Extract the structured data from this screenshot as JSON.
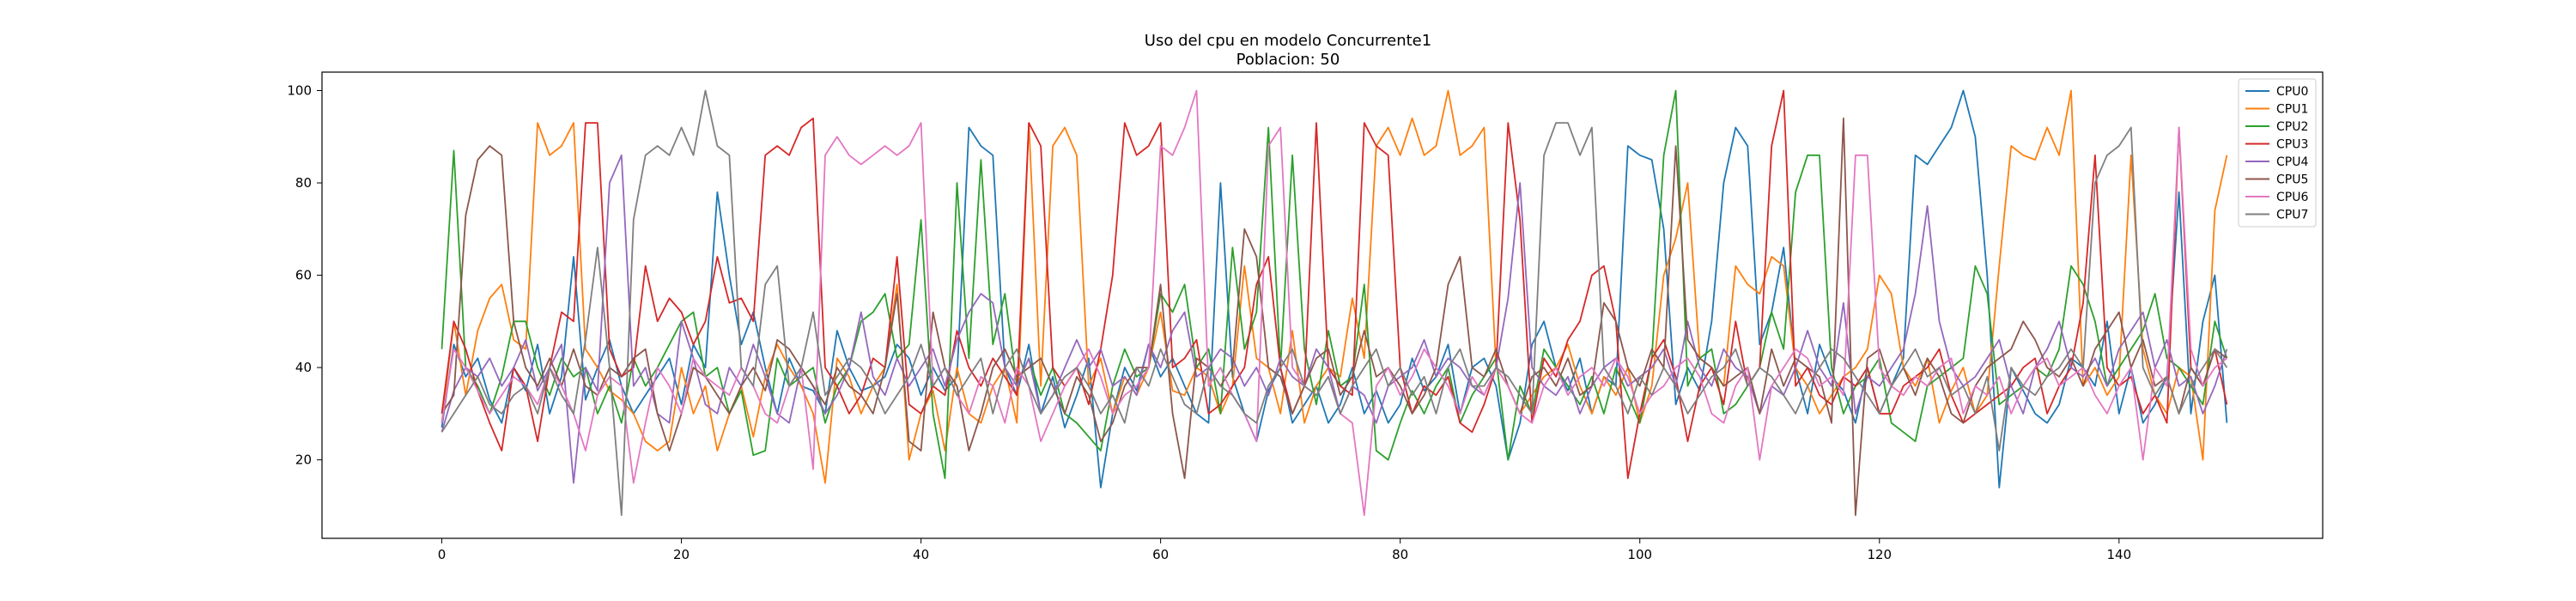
{
  "chart_data": {
    "type": "line",
    "title": "Uso del cpu en modelo Concurrente1",
    "subtitle": "Poblacion: 50",
    "xlabel": "",
    "ylabel": "",
    "xlim": [
      -10,
      157
    ],
    "ylim": [
      3,
      104
    ],
    "x_ticks": [
      0,
      20,
      40,
      60,
      80,
      100,
      120,
      140
    ],
    "y_ticks": [
      20,
      40,
      60,
      80,
      100
    ],
    "grid": false,
    "legend_position": "top-right",
    "colors": [
      "#1f77b4",
      "#ff7f0e",
      "#2ca02c",
      "#d62728",
      "#9467bd",
      "#8c564b",
      "#e377c2",
      "#7f7f7f"
    ],
    "series": [
      {
        "name": "CPU0",
        "values": [
          27,
          45,
          38,
          42,
          33,
          28,
          40,
          35,
          45,
          30,
          38,
          64,
          33,
          40,
          46,
          36,
          30,
          34,
          38,
          42,
          32,
          45,
          40,
          78,
          60,
          45,
          52,
          40,
          30,
          42,
          36,
          35,
          30,
          48,
          40,
          35,
          36,
          38,
          45,
          42,
          34,
          40,
          35,
          38,
          92,
          88,
          86,
          40,
          34,
          45,
          30,
          38,
          27,
          34,
          42,
          14,
          30,
          40,
          35,
          45,
          38,
          42,
          36,
          30,
          28,
          80,
          38,
          30,
          24,
          35,
          40,
          28,
          32,
          36,
          28,
          32,
          40,
          30,
          35,
          28,
          32,
          42,
          35,
          38,
          45,
          30,
          40,
          42,
          36,
          20,
          28,
          45,
          50,
          40,
          35,
          42,
          30,
          38,
          36,
          88,
          86,
          85,
          70,
          32,
          40,
          35,
          50,
          80,
          92,
          88,
          45,
          52,
          66,
          40,
          30,
          45,
          38,
          35,
          28,
          40,
          30,
          36,
          42,
          86,
          84,
          88,
          92,
          100,
          90,
          60,
          14,
          40,
          35,
          30,
          28,
          32,
          42,
          40,
          36,
          50,
          30,
          40,
          28,
          32,
          38,
          78,
          30,
          50,
          60,
          28
        ]
      },
      {
        "name": "CPU1",
        "values": [
          28,
          50,
          34,
          48,
          55,
          58,
          46,
          44,
          93,
          86,
          88,
          93,
          44,
          40,
          35,
          33,
          30,
          24,
          22,
          24,
          40,
          30,
          36,
          22,
          30,
          36,
          25,
          38,
          45,
          40,
          36,
          30,
          15,
          42,
          38,
          30,
          36,
          40,
          58,
          20,
          30,
          35,
          22,
          40,
          30,
          28,
          36,
          40,
          28,
          93,
          36,
          88,
          92,
          86,
          36,
          42,
          30,
          38,
          34,
          40,
          52,
          35,
          34,
          40,
          38,
          30,
          36,
          62,
          42,
          40,
          30,
          48,
          28,
          36,
          40,
          38,
          55,
          42,
          88,
          92,
          86,
          94,
          86,
          88,
          100,
          86,
          88,
          92,
          40,
          36,
          30,
          34,
          38,
          40,
          45,
          36,
          30,
          38,
          34,
          40,
          28,
          36,
          60,
          68,
          80,
          42,
          40,
          36,
          62,
          58,
          56,
          64,
          62,
          40,
          36,
          30,
          34,
          38,
          40,
          44,
          60,
          56,
          40,
          36,
          42,
          28,
          35,
          40,
          30,
          34,
          62,
          88,
          86,
          85,
          92,
          86,
          100,
          36,
          40,
          34,
          38,
          86,
          44,
          34,
          30,
          40,
          38,
          20,
          74,
          86
        ]
      },
      {
        "name": "CPU2",
        "values": [
          44,
          87,
          40,
          36,
          30,
          38,
          50,
          50,
          40,
          34,
          42,
          38,
          40,
          30,
          36,
          28,
          42,
          36,
          40,
          45,
          50,
          52,
          38,
          40,
          30,
          35,
          21,
          22,
          42,
          36,
          38,
          40,
          28,
          36,
          40,
          50,
          52,
          56,
          42,
          45,
          72,
          30,
          16,
          80,
          42,
          85,
          45,
          56,
          36,
          42,
          34,
          40,
          30,
          28,
          25,
          22,
          36,
          44,
          38,
          40,
          56,
          52,
          58,
          40,
          44,
          30,
          66,
          44,
          52,
          92,
          40,
          86,
          44,
          32,
          48,
          36,
          38,
          58,
          22,
          20,
          28,
          35,
          30,
          36,
          40,
          28,
          34,
          38,
          42,
          20,
          36,
          30,
          44,
          40,
          36,
          32,
          38,
          30,
          40,
          34,
          28,
          42,
          86,
          100,
          36,
          42,
          44,
          30,
          32,
          36,
          40,
          52,
          44,
          78,
          86,
          86,
          40,
          30,
          36,
          38,
          42,
          28,
          26,
          24,
          36,
          38,
          40,
          42,
          62,
          56,
          32,
          34,
          36,
          40,
          38,
          44,
          62,
          58,
          50,
          36,
          40,
          44,
          48,
          56,
          42,
          40,
          36,
          32,
          50,
          42
        ]
      },
      {
        "name": "CPU3",
        "values": [
          30,
          50,
          44,
          35,
          28,
          22,
          40,
          36,
          24,
          40,
          52,
          50,
          93,
          93,
          44,
          38,
          40,
          62,
          50,
          55,
          52,
          45,
          50,
          64,
          54,
          55,
          50,
          86,
          88,
          86,
          92,
          94,
          40,
          36,
          30,
          34,
          42,
          40,
          64,
          32,
          30,
          36,
          34,
          48,
          40,
          36,
          42,
          38,
          34,
          93,
          88,
          40,
          36,
          40,
          32,
          44,
          60,
          93,
          86,
          88,
          93,
          40,
          42,
          46,
          30,
          32,
          36,
          40,
          58,
          64,
          40,
          30,
          36,
          93,
          40,
          36,
          34,
          93,
          88,
          86,
          40,
          30,
          36,
          34,
          38,
          28,
          26,
          32,
          40,
          93,
          72,
          28,
          42,
          38,
          46,
          50,
          60,
          62,
          50,
          16,
          30,
          42,
          46,
          38,
          24,
          36,
          40,
          32,
          50,
          36,
          40,
          88,
          100,
          36,
          40,
          34,
          32,
          38,
          36,
          40,
          30,
          30,
          36,
          38,
          40,
          44,
          34,
          28,
          30,
          32,
          34,
          36,
          40,
          42,
          30,
          36,
          40,
          54,
          86,
          40,
          36,
          38,
          30,
          34,
          28,
          92,
          40,
          36,
          44,
          32
        ]
      },
      {
        "name": "CPU4",
        "values": [
          26,
          35,
          40,
          38,
          42,
          36,
          40,
          46,
          35,
          40,
          45,
          15,
          40,
          35,
          80,
          86,
          36,
          40,
          30,
          28,
          50,
          42,
          32,
          30,
          40,
          36,
          45,
          38,
          30,
          28,
          40,
          36,
          30,
          34,
          40,
          52,
          38,
          34,
          42,
          36,
          40,
          44,
          36,
          46,
          52,
          56,
          54,
          40,
          36,
          42,
          30,
          34,
          40,
          46,
          40,
          44,
          36,
          38,
          34,
          45,
          40,
          48,
          52,
          38,
          40,
          44,
          42,
          36,
          40,
          34,
          42,
          38,
          36,
          44,
          40,
          30,
          36,
          34,
          28,
          36,
          38,
          40,
          46,
          38,
          42,
          40,
          36,
          34,
          40,
          55,
          80,
          40,
          36,
          34,
          38,
          30,
          36,
          40,
          42,
          36,
          38,
          40,
          44,
          36,
          50,
          40,
          36,
          44,
          40,
          38,
          30,
          36,
          34,
          40,
          48,
          40,
          36,
          54,
          30,
          38,
          36,
          40,
          44,
          56,
          75,
          50,
          40,
          36,
          38,
          42,
          46,
          36,
          30,
          40,
          44,
          50,
          40,
          38,
          42,
          36,
          44,
          48,
          52,
          40,
          46,
          36,
          38,
          30,
          36,
          44
        ]
      },
      {
        "name": "CPU5",
        "values": [
          30,
          34,
          73,
          85,
          88,
          86,
          50,
          40,
          36,
          42,
          36,
          44,
          36,
          34,
          40,
          38,
          42,
          44,
          30,
          22,
          30,
          40,
          38,
          34,
          30,
          36,
          40,
          35,
          46,
          44,
          40,
          36,
          32,
          40,
          36,
          34,
          30,
          40,
          56,
          24,
          22,
          52,
          40,
          36,
          22,
          30,
          40,
          44,
          38,
          40,
          42,
          36,
          30,
          38,
          34,
          24,
          28,
          36,
          40,
          40,
          58,
          30,
          16,
          42,
          40,
          36,
          40,
          70,
          64,
          40,
          38,
          30,
          36,
          42,
          44,
          34,
          38,
          48,
          38,
          40,
          36,
          30,
          34,
          40,
          58,
          64,
          40,
          38,
          44,
          36,
          30,
          38,
          40,
          36,
          42,
          34,
          36,
          54,
          50,
          40,
          36,
          44,
          40,
          88,
          46,
          42,
          40,
          36,
          38,
          40,
          30,
          44,
          36,
          42,
          40,
          38,
          28,
          94,
          8,
          42,
          44,
          36,
          40,
          34,
          42,
          38,
          30,
          28,
          36,
          40,
          42,
          44,
          50,
          46,
          40,
          38,
          42,
          36,
          44,
          48,
          52,
          40,
          46,
          36,
          38,
          30,
          40,
          36,
          44,
          42
        ]
      },
      {
        "name": "CPU6",
        "values": [
          28,
          44,
          40,
          35,
          30,
          34,
          38,
          36,
          32,
          40,
          36,
          30,
          22,
          34,
          38,
          36,
          15,
          28,
          40,
          36,
          30,
          42,
          38,
          36,
          34,
          40,
          36,
          30,
          28,
          36,
          40,
          18,
          86,
          90,
          86,
          84,
          86,
          88,
          86,
          88,
          93,
          36,
          40,
          34,
          30,
          38,
          36,
          28,
          40,
          36,
          24,
          30,
          36,
          40,
          44,
          38,
          30,
          34,
          36,
          40,
          88,
          86,
          92,
          100,
          36,
          40,
          34,
          30,
          24,
          88,
          92,
          40,
          36,
          34,
          38,
          30,
          28,
          8,
          36,
          40,
          34,
          38,
          44,
          40,
          36,
          30,
          38,
          34,
          40,
          36,
          30,
          28,
          36,
          40,
          34,
          38,
          40,
          36,
          42,
          38,
          30,
          34,
          36,
          40,
          42,
          38,
          30,
          28,
          36,
          40,
          20,
          36,
          40,
          44,
          42,
          36,
          38,
          34,
          86,
          86,
          40,
          36,
          34,
          38,
          36,
          40,
          42,
          30,
          36,
          34,
          38,
          30,
          36,
          40,
          42,
          36,
          38,
          40,
          34,
          30,
          36,
          40,
          20,
          40,
          36,
          92,
          44,
          36,
          40,
          42
        ]
      },
      {
        "name": "CPU7",
        "values": [
          26,
          30,
          34,
          38,
          32,
          30,
          34,
          36,
          30,
          40,
          34,
          30,
          46,
          66,
          40,
          8,
          72,
          86,
          88,
          86,
          92,
          86,
          100,
          88,
          86,
          40,
          36,
          58,
          62,
          36,
          40,
          52,
          34,
          38,
          42,
          40,
          36,
          30,
          34,
          38,
          45,
          36,
          40,
          34,
          38,
          42,
          30,
          40,
          44,
          36,
          30,
          34,
          38,
          40,
          36,
          30,
          34,
          28,
          40,
          36,
          44,
          38,
          32,
          30,
          40,
          36,
          34,
          30,
          28,
          36,
          40,
          44,
          36,
          34,
          38,
          30,
          36,
          40,
          44,
          36,
          40,
          34,
          38,
          30,
          40,
          44,
          36,
          36,
          40,
          38,
          34,
          30,
          86,
          93,
          93,
          86,
          92,
          40,
          36,
          30,
          38,
          34,
          40,
          36,
          30,
          34,
          38,
          40,
          44,
          36,
          40,
          38,
          34,
          30,
          36,
          40,
          44,
          42,
          38,
          34,
          30,
          36,
          40,
          44,
          38,
          40,
          34,
          36,
          30,
          38,
          22,
          40,
          36,
          34,
          38,
          40,
          44,
          40,
          80,
          86,
          88,
          92,
          40,
          34,
          38,
          30,
          36,
          40,
          44,
          40
        ]
      }
    ]
  }
}
